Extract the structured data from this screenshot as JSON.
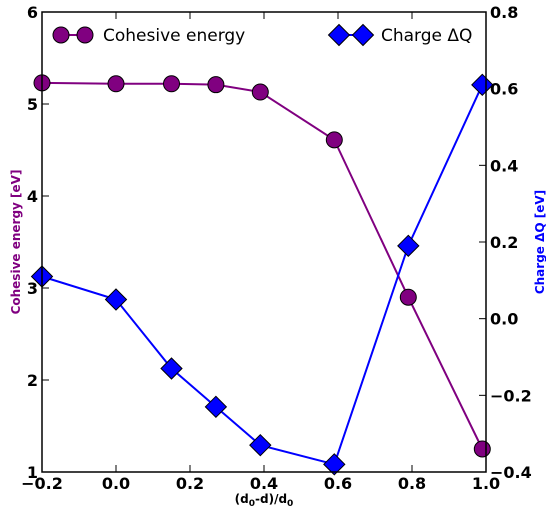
{
  "chart_data": {
    "type": "line",
    "xlabel": "(d0-d)/d0",
    "xlabel_main": "(d",
    "xlabel_sub1": "0",
    "xlabel_mid": "-d)/d",
    "xlabel_sub2": "0",
    "xlim": [
      -0.2,
      1.0
    ],
    "x_ticks": [
      "−0.2",
      "0.0",
      "0.2",
      "0.4",
      "0.6",
      "0.8",
      "1.0"
    ],
    "left_axis": {
      "label": "Cohesive energy [eV]",
      "ylim": [
        1,
        6
      ],
      "ticks": [
        "1",
        "2",
        "3",
        "4",
        "5",
        "6"
      ],
      "color": "#800080"
    },
    "right_axis": {
      "label": "Charge ΔQ [eV]",
      "ylim": [
        -0.4,
        0.8
      ],
      "ticks": [
        "−0.4",
        "−0.2",
        "0.0",
        "0.2",
        "0.4",
        "0.6",
        "0.8"
      ],
      "color": "#0000ff"
    },
    "series": [
      {
        "name": "Cohesive energy",
        "axis": "left",
        "marker": "circle",
        "color": "#800080",
        "x": [
          -0.2,
          0.0,
          0.15,
          0.27,
          0.39,
          0.59,
          0.79,
          0.99
        ],
        "y": [
          5.23,
          5.22,
          5.22,
          5.21,
          5.13,
          4.61,
          2.9,
          1.25
        ]
      },
      {
        "name": "Charge ΔQ",
        "axis": "right",
        "marker": "diamond",
        "color": "#0000ff",
        "x": [
          -0.2,
          0.0,
          0.15,
          0.27,
          0.39,
          0.59,
          0.79,
          0.99
        ],
        "y": [
          0.11,
          0.05,
          -0.13,
          -0.23,
          -0.33,
          -0.38,
          0.19,
          0.61
        ]
      }
    ],
    "legend": {
      "placement": "top"
    }
  }
}
